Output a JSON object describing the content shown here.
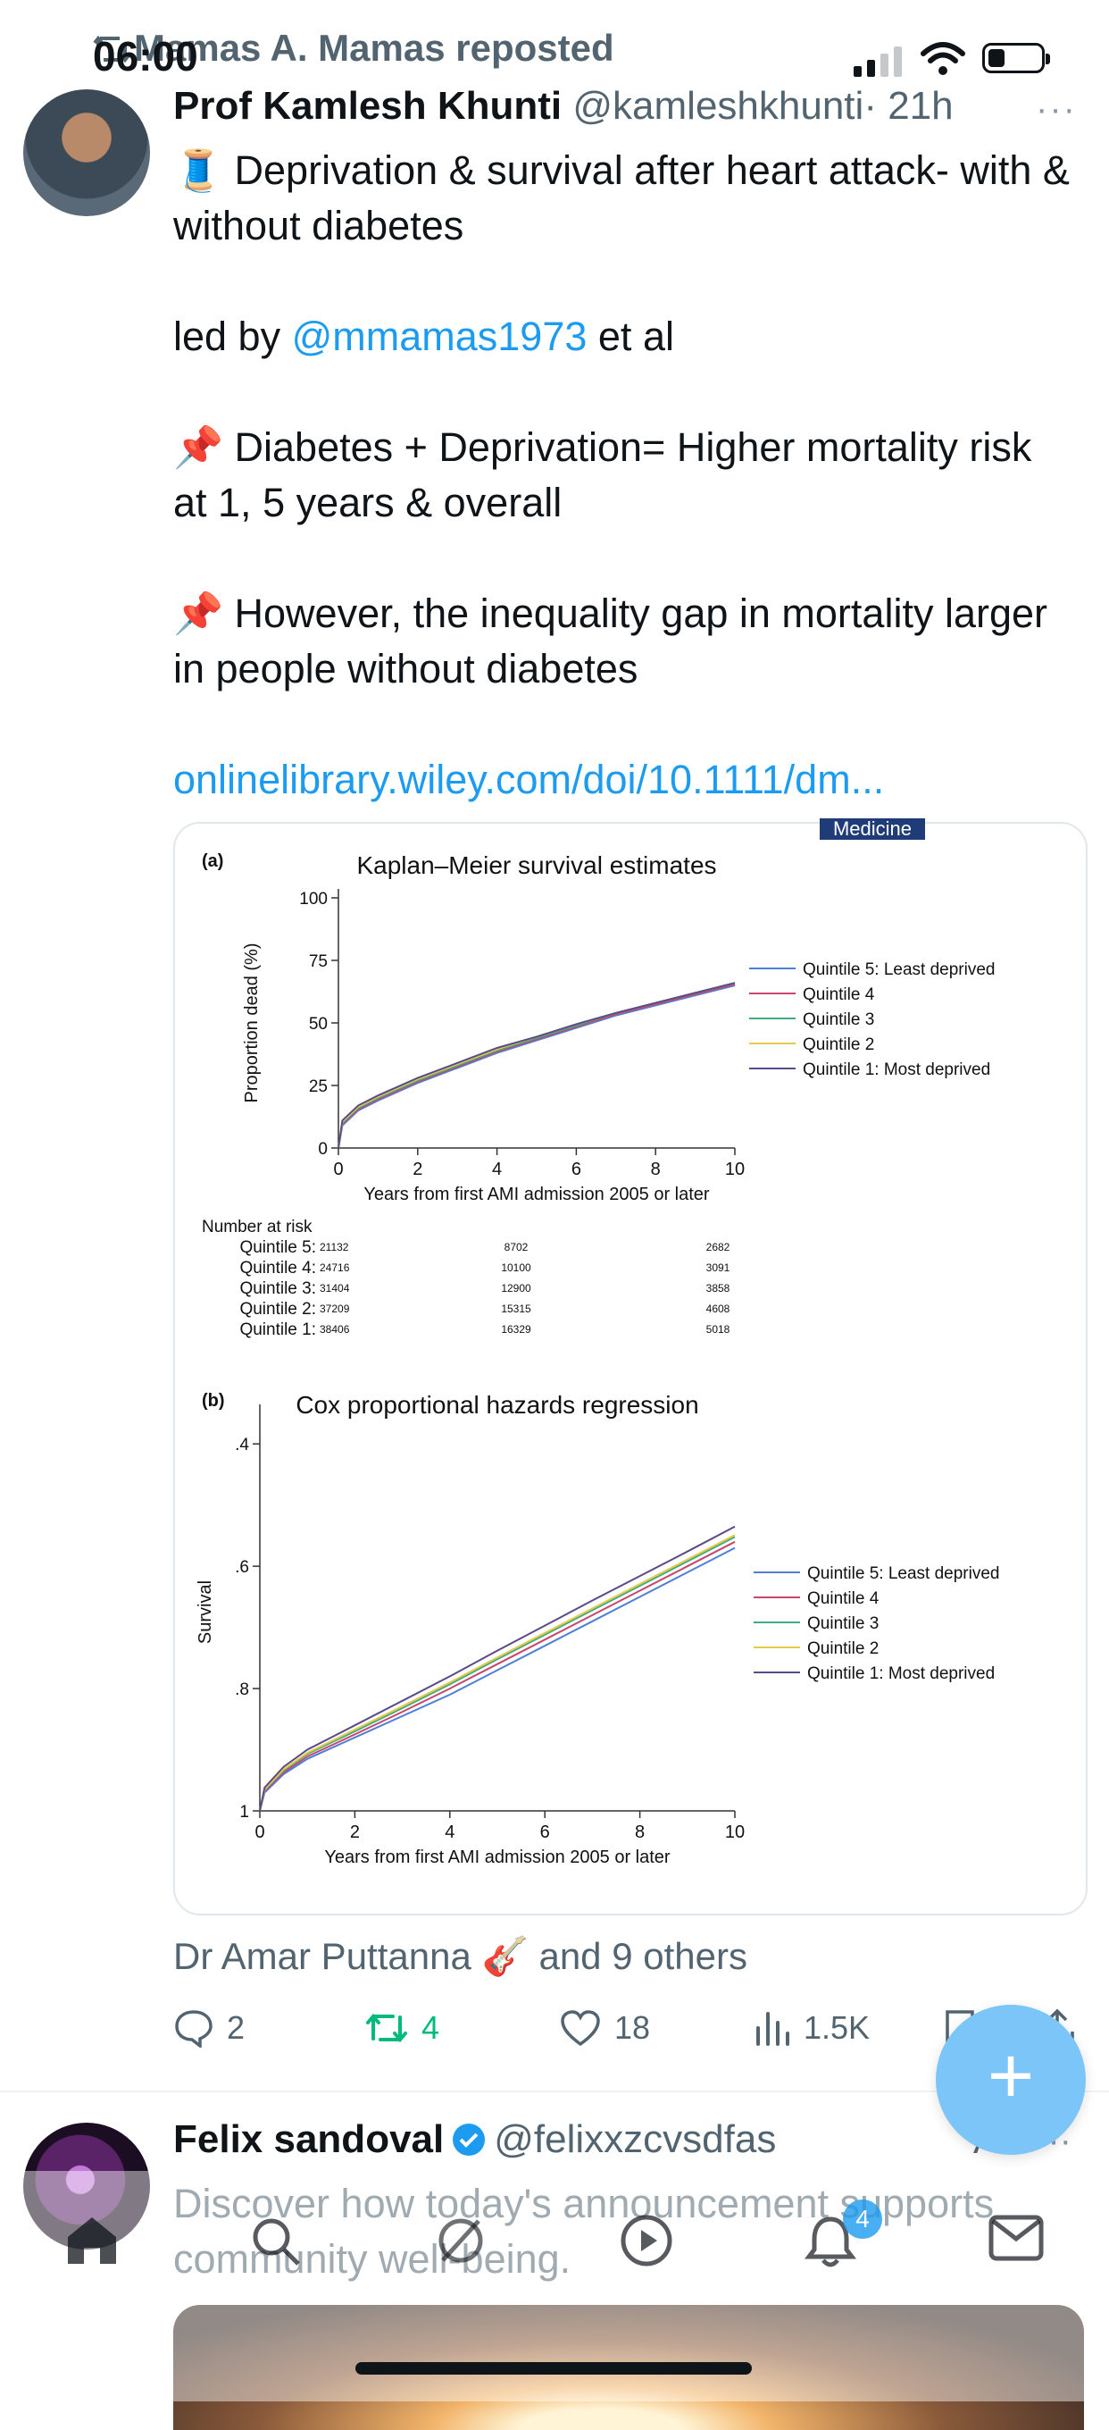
{
  "status": {
    "time": "06:00"
  },
  "repost": {
    "text": "Mamas A. Mamas reposted"
  },
  "tweet": {
    "name": "Prof Kamlesh Khunti",
    "handle": "@kamleshkhunti",
    "time": "· 21h",
    "more": "···",
    "line1": "🧵 Deprivation & survival after heart attack- with & without diabetes",
    "led_prefix": "led by ",
    "led_mention": "@mmamas1973",
    "led_suffix": " et al",
    "point1": "📌 Diabetes + Deprivation= Higher mortality risk at 1, 5 years & overall",
    "point2": "📌 However, the inequality gap in mortality larger in people without diabetes",
    "link": "onlinelibrary.wiley.com/doi/10.1111/dm..."
  },
  "card": {
    "journal_tag": "Medicine"
  },
  "chart_data": [
    {
      "type": "line",
      "panel": "(a)",
      "title": "Kaplan–Meier survival estimates",
      "xlabel": "Years from first AMI admission 2005 or later",
      "ylabel": "Proportion dead (%)",
      "xlim": [
        0,
        10
      ],
      "ylim": [
        0,
        100
      ],
      "xticks": [
        "0",
        "2",
        "4",
        "6",
        "8",
        "10"
      ],
      "yticks": [
        "0",
        "25",
        "50",
        "75",
        "100"
      ],
      "legend_position": "right",
      "series": [
        {
          "name": "Quintile 5: Least deprived",
          "color": "#4e7fd6",
          "x": [
            0,
            0.1,
            0.5,
            1,
            2,
            3,
            4,
            5,
            6,
            7,
            8,
            9,
            10
          ],
          "y": [
            0,
            9,
            15,
            19,
            26,
            32,
            38,
            43,
            48,
            53,
            57,
            61,
            65
          ]
        },
        {
          "name": "Quintile 4",
          "color": "#c8466e",
          "x": [
            0,
            0.1,
            0.5,
            1,
            2,
            3,
            4,
            5,
            6,
            7,
            8,
            9,
            10
          ],
          "y": [
            0,
            9.5,
            15.5,
            19.5,
            26.5,
            32.5,
            38.5,
            43.5,
            48.5,
            53.5,
            57.5,
            61.5,
            65.5
          ]
        },
        {
          "name": "Quintile 3",
          "color": "#3fae7e",
          "x": [
            0,
            0.1,
            0.5,
            1,
            2,
            3,
            4,
            5,
            6,
            7,
            8,
            9,
            10
          ],
          "y": [
            0,
            10,
            16,
            20,
            27,
            33,
            39,
            44,
            49,
            54,
            58,
            62,
            66
          ]
        },
        {
          "name": "Quintile 2",
          "color": "#e8c94a",
          "x": [
            0,
            0.1,
            0.5,
            1,
            2,
            3,
            4,
            5,
            6,
            7,
            8,
            9,
            10
          ],
          "y": [
            0,
            10.5,
            16.5,
            20.5,
            27.5,
            33.5,
            39.5,
            44.5,
            49.5,
            54,
            58,
            62,
            66
          ]
        },
        {
          "name": "Quintile 1: Most deprived",
          "color": "#5a4a8a",
          "x": [
            0,
            0.1,
            0.5,
            1,
            2,
            3,
            4,
            5,
            6,
            7,
            8,
            9,
            10
          ],
          "y": [
            0,
            11,
            17,
            21,
            28,
            34,
            40,
            44.5,
            49.5,
            54,
            58,
            62,
            66
          ]
        }
      ],
      "risk_table": {
        "title": "Number at risk",
        "rows": [
          {
            "label": "Quintile 5:",
            "values": [
              "21132",
              "8702",
              "2682"
            ]
          },
          {
            "label": "Quintile 4:",
            "values": [
              "24716",
              "10100",
              "3091"
            ]
          },
          {
            "label": "Quintile 3:",
            "values": [
              "31404",
              "12900",
              "3858"
            ]
          },
          {
            "label": "Quintile 2:",
            "values": [
              "37209",
              "15315",
              "4608"
            ]
          },
          {
            "label": "Quintile 1:",
            "values": [
              "38406",
              "16329",
              "5018"
            ]
          }
        ]
      }
    },
    {
      "type": "line",
      "panel": "(b)",
      "title": "Cox proportional hazards regression",
      "xlabel": "Years from first AMI admission 2005 or later",
      "ylabel": "Survival",
      "xlim": [
        0,
        10
      ],
      "ylim": [
        1,
        0.35
      ],
      "xticks": [
        "0",
        "2",
        "4",
        "6",
        "8",
        "10"
      ],
      "yticks": [
        "1",
        ".8",
        ".6",
        ".4"
      ],
      "legend_position": "right",
      "series": [
        {
          "name": "Quintile 5: Least deprived",
          "color": "#4e7fd6",
          "x": [
            0,
            0.1,
            0.5,
            1,
            2,
            3,
            4,
            5,
            6,
            7,
            8,
            9,
            10
          ],
          "y": [
            1,
            0.97,
            0.94,
            0.915,
            0.88,
            0.845,
            0.81,
            0.77,
            0.73,
            0.69,
            0.65,
            0.61,
            0.57
          ]
        },
        {
          "name": "Quintile 4",
          "color": "#c8466e",
          "x": [
            0,
            0.1,
            0.5,
            1,
            2,
            3,
            4,
            5,
            6,
            7,
            8,
            9,
            10
          ],
          "y": [
            1,
            0.968,
            0.937,
            0.911,
            0.875,
            0.838,
            0.8,
            0.76,
            0.72,
            0.68,
            0.64,
            0.6,
            0.56
          ]
        },
        {
          "name": "Quintile 3",
          "color": "#3fae7e",
          "x": [
            0,
            0.1,
            0.5,
            1,
            2,
            3,
            4,
            5,
            6,
            7,
            8,
            9,
            10
          ],
          "y": [
            1,
            0.966,
            0.934,
            0.907,
            0.87,
            0.832,
            0.793,
            0.752,
            0.712,
            0.672,
            0.632,
            0.592,
            0.552
          ]
        },
        {
          "name": "Quintile 2",
          "color": "#e8c94a",
          "x": [
            0,
            0.1,
            0.5,
            1,
            2,
            3,
            4,
            5,
            6,
            7,
            8,
            9,
            10
          ],
          "y": [
            1,
            0.965,
            0.932,
            0.905,
            0.867,
            0.829,
            0.79,
            0.749,
            0.709,
            0.669,
            0.629,
            0.589,
            0.549
          ]
        },
        {
          "name": "Quintile 1: Most deprived",
          "color": "#5a4a8a",
          "x": [
            0,
            0.1,
            0.5,
            1,
            2,
            3,
            4,
            5,
            6,
            7,
            8,
            9,
            10
          ],
          "y": [
            1,
            0.962,
            0.928,
            0.9,
            0.86,
            0.82,
            0.78,
            0.738,
            0.697,
            0.656,
            0.616,
            0.576,
            0.535
          ]
        }
      ]
    }
  ],
  "likers": {
    "text": "Dr Amar Puttanna 🎸 and 9 others"
  },
  "actions": {
    "replies": "2",
    "reposts": "4",
    "likes": "18",
    "views": "1.5K"
  },
  "fab": {
    "label": "+"
  },
  "tweet2": {
    "name": "Felix sandoval",
    "handle": "@felixxzcvsdfas",
    "ad_label": "Ad",
    "more": "···",
    "text": "Discover how today's announcement supports community well-being."
  },
  "nav": {
    "notifications_badge": "4"
  },
  "icons": {
    "reply": "speech-bubble-icon",
    "repost": "repost-arrows-icon",
    "like": "heart-icon",
    "views": "bar-chart-icon",
    "bookmark": "bookmark-icon",
    "share": "share-icon"
  }
}
